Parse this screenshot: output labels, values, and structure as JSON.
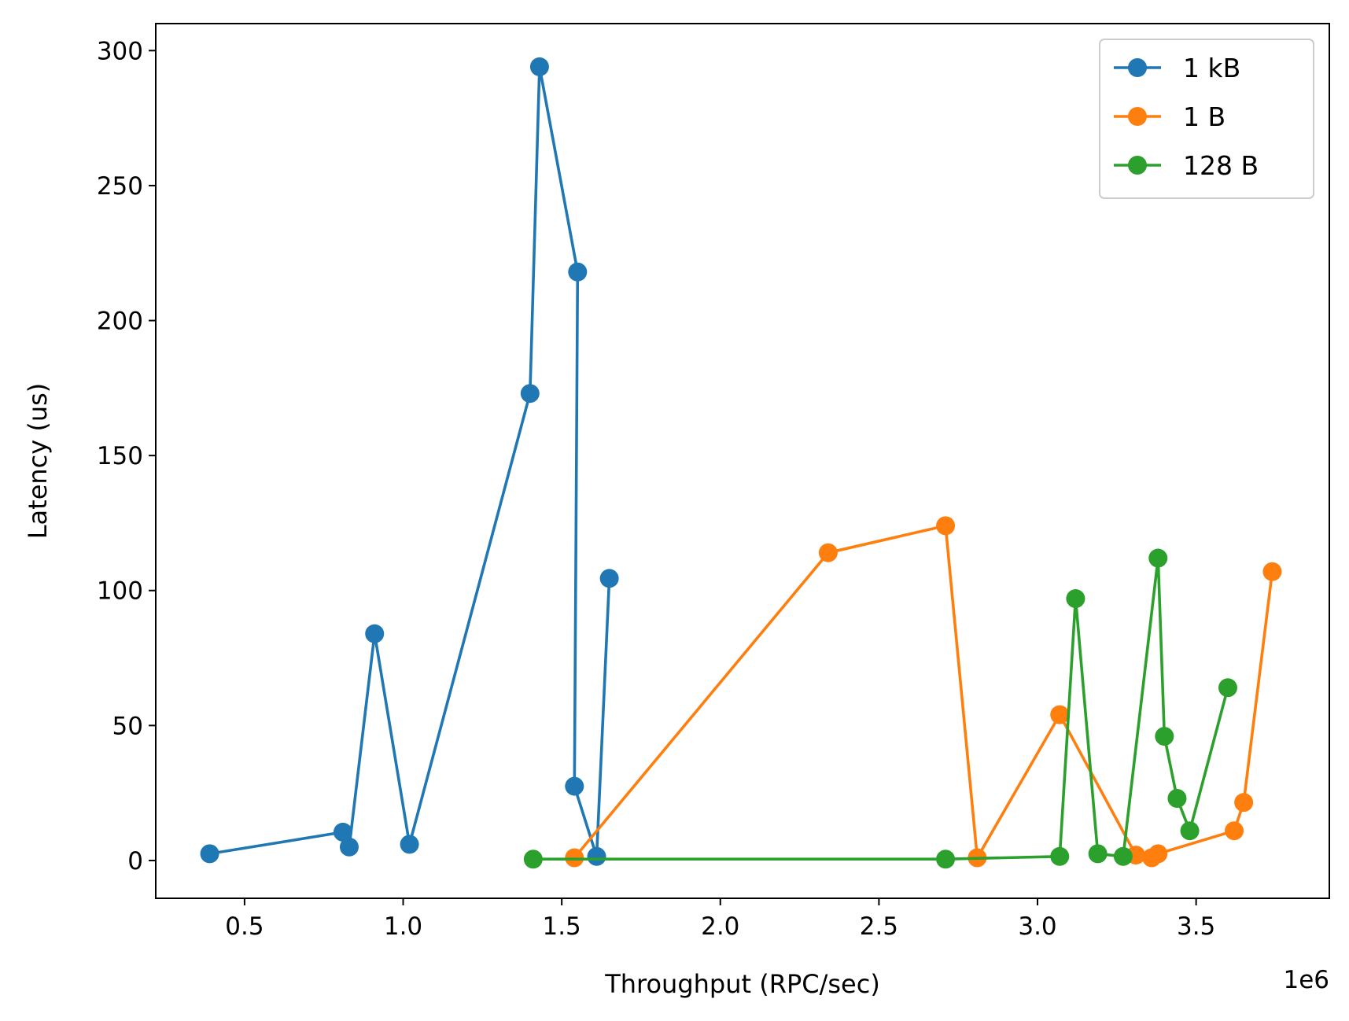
{
  "chart_data": {
    "type": "line",
    "title": "",
    "xlabel": "Throughput (RPC/sec)",
    "ylabel": "Latency (us)",
    "x_offset_label": "1e6",
    "xlim": [
      0.22,
      3.92
    ],
    "ylim": [
      -14,
      310
    ],
    "x_ticks": [
      0.5,
      1.0,
      1.5,
      2.0,
      2.5,
      3.0,
      3.5
    ],
    "x_tick_labels": [
      "0.5",
      "1.0",
      "1.5",
      "2.0",
      "2.5",
      "3.0",
      "3.5"
    ],
    "y_ticks": [
      0,
      50,
      100,
      150,
      200,
      250,
      300
    ],
    "y_tick_labels": [
      "0",
      "50",
      "100",
      "150",
      "200",
      "250",
      "300"
    ],
    "grid": false,
    "legend_position": "top-right",
    "series": [
      {
        "name": "1 kB",
        "color": "#1f77b4",
        "x": [
          0.39,
          0.81,
          0.83,
          0.91,
          1.02,
          1.4,
          1.43,
          1.55,
          1.54,
          1.61,
          1.65
        ],
        "y": [
          2.5,
          10.5,
          5,
          84,
          6,
          173,
          294,
          218,
          27.5,
          1.5,
          104.5
        ]
      },
      {
        "name": "1 B",
        "color": "#ff7f0e",
        "x": [
          1.54,
          2.34,
          2.71,
          2.81,
          3.07,
          3.31,
          3.36,
          3.38,
          3.62,
          3.65,
          3.74
        ],
        "y": [
          1,
          114,
          124,
          1,
          54,
          2,
          1,
          2.5,
          11,
          21.5,
          107
        ]
      },
      {
        "name": "128 B",
        "color": "#2ca02c",
        "x": [
          1.41,
          2.71,
          3.07,
          3.12,
          3.19,
          3.27,
          3.38,
          3.4,
          3.44,
          3.48,
          3.6
        ],
        "y": [
          0.5,
          0.5,
          1.5,
          97,
          2.5,
          1.5,
          112,
          46,
          23,
          11,
          64
        ]
      }
    ]
  }
}
